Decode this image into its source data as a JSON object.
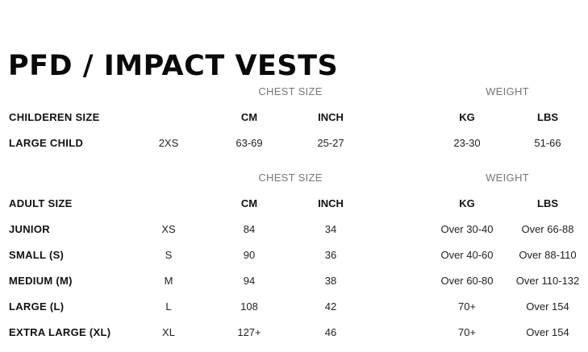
{
  "title": "PFD / IMPACT VESTS",
  "sections": [
    {
      "groups": {
        "chest": "CHEST SIZE",
        "weight": "WEIGHT"
      },
      "header": {
        "label": "CHILDEREN SIZE",
        "cm": "CM",
        "inch": "INCH",
        "kg": "KG",
        "lbs": "LBS"
      },
      "rows": [
        {
          "label": "LARGE CHILD",
          "size": "2XS",
          "cm": "63-69",
          "inch": "25-27",
          "kg": "23-30",
          "lbs": "51-66"
        }
      ]
    },
    {
      "groups": {
        "chest": "CHEST SIZE",
        "weight": "WEIGHT"
      },
      "header": {
        "label": "ADULT SIZE",
        "cm": "CM",
        "inch": "INCH",
        "kg": "KG",
        "lbs": "LBS"
      },
      "rows": [
        {
          "label": "JUNIOR",
          "size": "XS",
          "cm": "84",
          "inch": "34",
          "kg": "Over 30-40",
          "lbs": "Over 66-88"
        },
        {
          "label": "SMALL (S)",
          "size": "S",
          "cm": "90",
          "inch": "36",
          "kg": "Over 40-60",
          "lbs": "Over 88-110"
        },
        {
          "label": "MEDIUM (M)",
          "size": "M",
          "cm": "94",
          "inch": "38",
          "kg": "Over 60-80",
          "lbs": "Over 110-132"
        },
        {
          "label": "LARGE (L)",
          "size": "L",
          "cm": "108",
          "inch": "42",
          "kg": "70+",
          "lbs": "Over 154"
        },
        {
          "label": "EXTRA LARGE (XL)",
          "size": "XL",
          "cm": "127+",
          "inch": "46",
          "kg": "70+",
          "lbs": "Over 154"
        }
      ]
    }
  ]
}
